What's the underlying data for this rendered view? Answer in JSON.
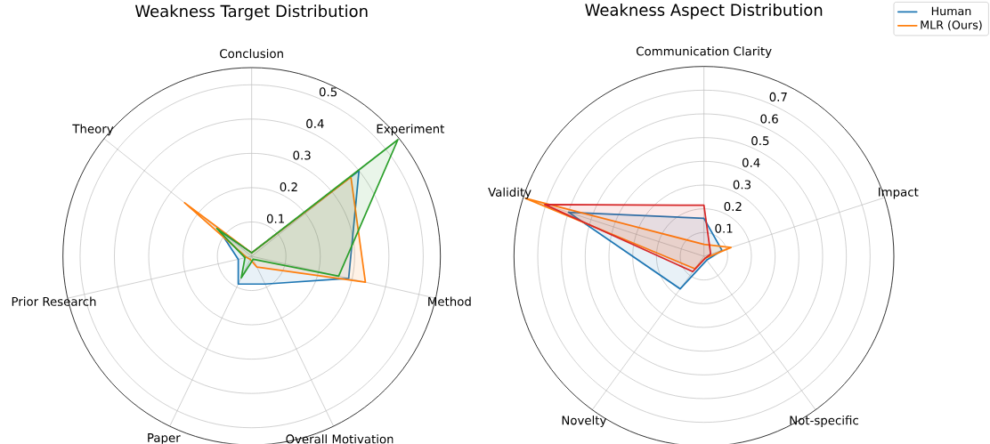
{
  "chart_data": [
    {
      "type": "radar",
      "title": "Weakness Target Distribution",
      "categories": [
        "Conclusion",
        "Experiment",
        "Method",
        "Overall Motivation",
        "Paper",
        "Prior Research",
        "Theory"
      ],
      "series": [
        {
          "color": "#1f77b4",
          "values": [
            0.01,
            0.4,
            0.29,
            0.09,
            0.09,
            0.04,
            0.12
          ]
        },
        {
          "color": "#ff7f0e",
          "values": [
            0.01,
            0.37,
            0.34,
            0.035,
            0.01,
            0.015,
            0.25
          ]
        },
        {
          "color": "#2ca02c",
          "values": [
            0.01,
            0.545,
            0.26,
            0.01,
            0.07,
            0.02,
            0.13
          ]
        }
      ],
      "ylim": [
        0,
        0.55
      ],
      "yticks": [
        0.1,
        0.2,
        0.3,
        0.4,
        0.5
      ],
      "grid": true
    },
    {
      "type": "radar",
      "title": "Weakness Aspect Distribution",
      "categories": [
        "Communication Clarity",
        "Impact",
        "Not-specific",
        "Novelty",
        "Validity"
      ],
      "series": [
        {
          "name": "Human",
          "color": "#1f77b4",
          "values": [
            0.16,
            0.08,
            0.02,
            0.17,
            0.6
          ]
        },
        {
          "name": "MLR (Ours)",
          "color": "#ff7f0e",
          "values": [
            0.05,
            0.12,
            0.01,
            0.065,
            0.79
          ]
        },
        {
          "color": "#d62728",
          "values": [
            0.215,
            0.03,
            0.01,
            0.08,
            0.705
          ]
        }
      ],
      "ylim": [
        0,
        0.8
      ],
      "yticks": [
        0.1,
        0.2,
        0.3,
        0.4,
        0.5,
        0.6,
        0.7
      ],
      "grid": true,
      "legend": "top right"
    }
  ]
}
